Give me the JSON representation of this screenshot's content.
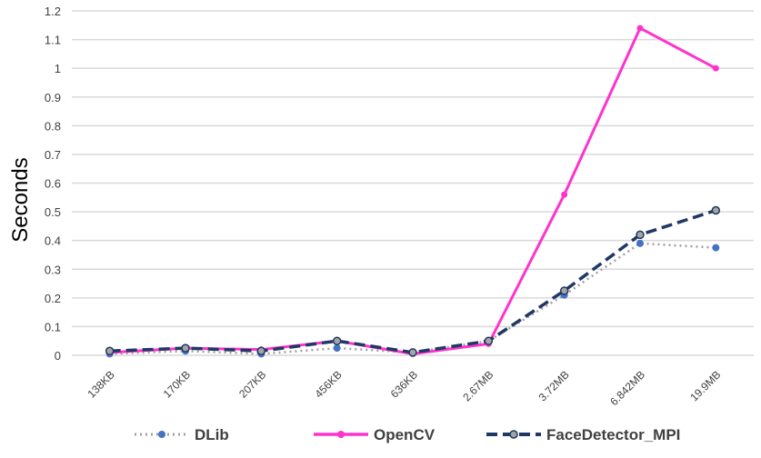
{
  "chart_data": {
    "type": "line",
    "title": "",
    "xlabel": "",
    "ylabel": "Seconds",
    "categories": [
      "138KB",
      "170KB",
      "207KB",
      "456KB",
      "636KB",
      "2.67MB",
      "3.72MB",
      "6.842MB",
      "19.9MB"
    ],
    "ylim": [
      0,
      1.2
    ],
    "yticks": [
      "0",
      "0.1",
      "0.2",
      "0.3",
      "0.4",
      "0.5",
      "0.6",
      "0.7",
      "0.8",
      "0.9",
      "1",
      "1.1",
      "1.2"
    ],
    "grid": true,
    "legend": "bottom",
    "series": [
      {
        "name": "DLib",
        "color": "#4472C4",
        "line_color": "#A0A0A0",
        "style": "dotted",
        "values": [
          0.005,
          0.015,
          0.005,
          0.025,
          0.01,
          0.05,
          0.21,
          0.39,
          0.375
        ]
      },
      {
        "name": "OpenCV",
        "color": "#FF33CC",
        "line_color": "#FF33CC",
        "style": "solid",
        "values": [
          0.01,
          0.025,
          0.02,
          0.05,
          0.005,
          0.04,
          0.56,
          1.14,
          1.0
        ]
      },
      {
        "name": "FaceDetector_MPI",
        "color": "#A5A5A5",
        "line_color": "#1F3864",
        "style": "dashed",
        "values": [
          0.015,
          0.025,
          0.015,
          0.05,
          0.01,
          0.05,
          0.225,
          0.42,
          0.505
        ]
      }
    ]
  }
}
